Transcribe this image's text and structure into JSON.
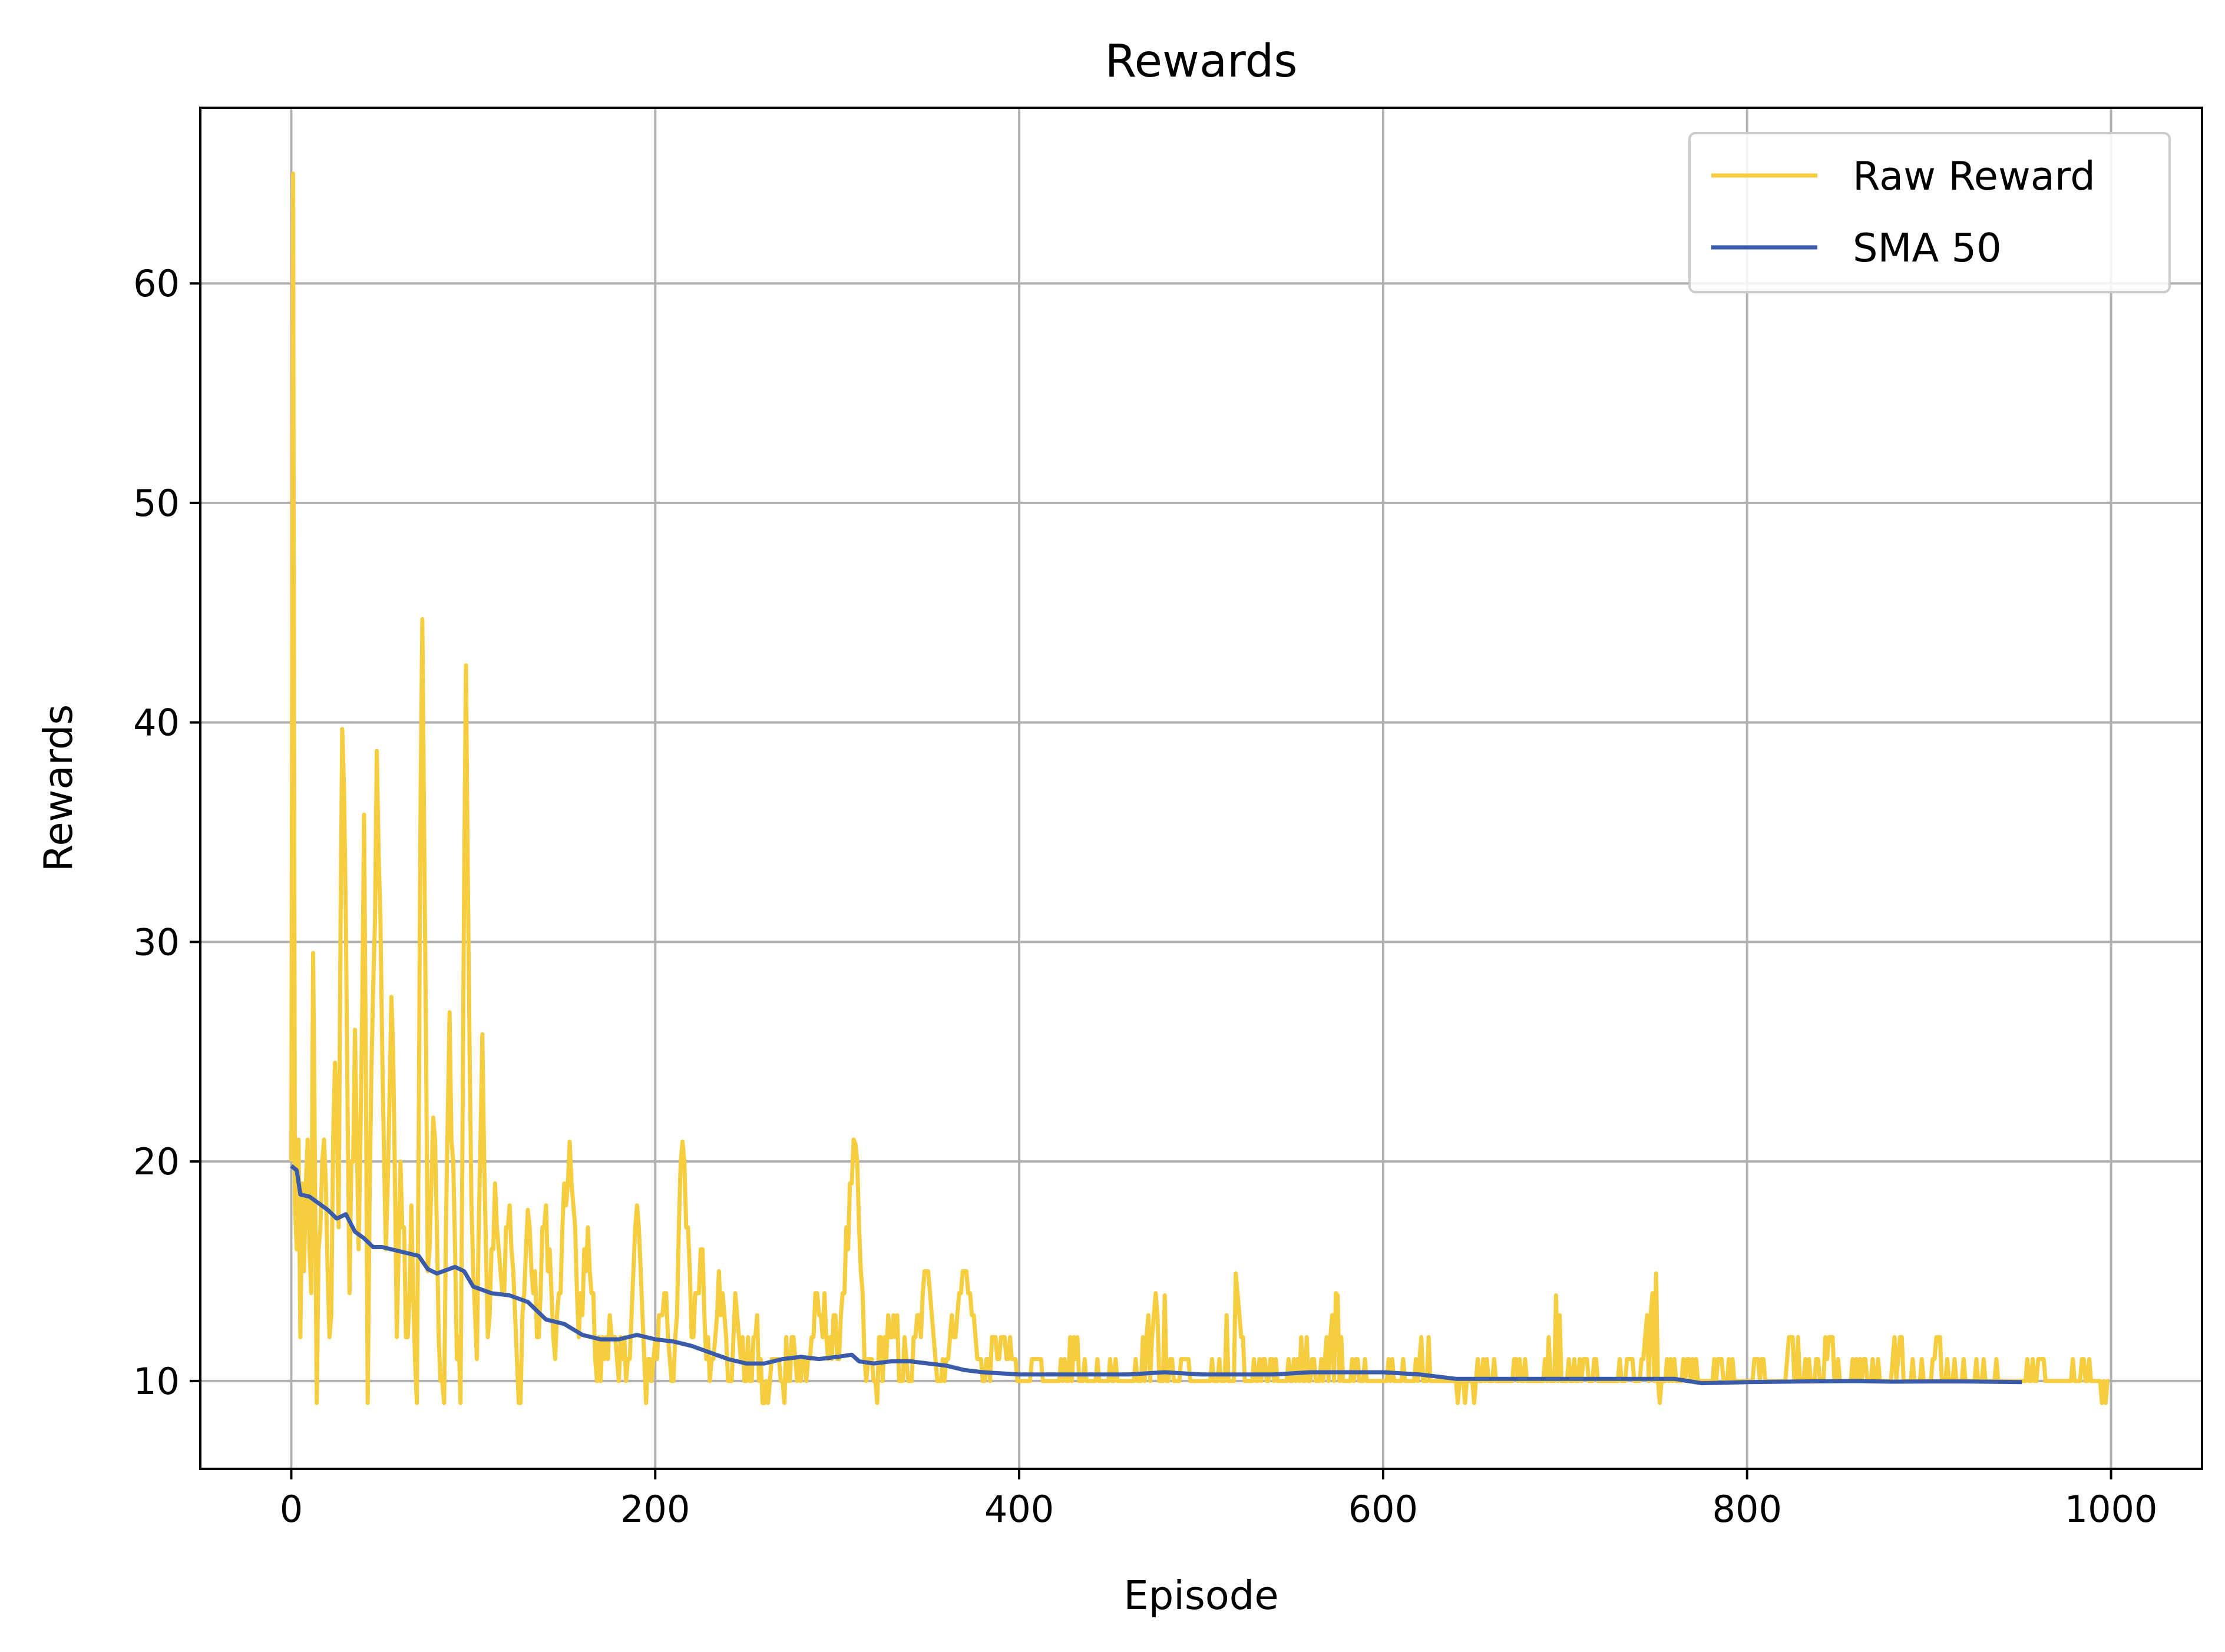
{
  "chart_data": {
    "type": "line",
    "title": "Rewards",
    "xlabel": "Episode",
    "ylabel": "Rewards",
    "xlim": [
      -50,
      1050
    ],
    "ylim": [
      6,
      68
    ],
    "xticks": [
      0,
      200,
      400,
      600,
      800,
      1000
    ],
    "yticks": [
      10,
      20,
      30,
      40,
      50,
      60
    ],
    "grid": true,
    "legend_position": "top-right",
    "series": [
      {
        "name": "Raw Reward",
        "color": "#f5cd3f",
        "episodes": [
          0,
          999
        ],
        "keypoints": [
          [
            0,
            20
          ],
          [
            1,
            65
          ],
          [
            2,
            18
          ],
          [
            3,
            16
          ],
          [
            4,
            21
          ],
          [
            5,
            12
          ],
          [
            6,
            19
          ],
          [
            7,
            15
          ],
          [
            9,
            21
          ],
          [
            11,
            14
          ],
          [
            12,
            29.5
          ],
          [
            14,
            9
          ],
          [
            16,
            17
          ],
          [
            18,
            21
          ],
          [
            20,
            15
          ],
          [
            22,
            13
          ],
          [
            24,
            24.5
          ],
          [
            26,
            17
          ],
          [
            28,
            39.7
          ],
          [
            30,
            31
          ],
          [
            32,
            14
          ],
          [
            35,
            26
          ],
          [
            37,
            16
          ],
          [
            40,
            35.8
          ],
          [
            42,
            9
          ],
          [
            45,
            28
          ],
          [
            47,
            38.7
          ],
          [
            50,
            25
          ],
          [
            52,
            16
          ],
          [
            55,
            27.5
          ],
          [
            58,
            12
          ],
          [
            60,
            20
          ],
          [
            63,
            12
          ],
          [
            66,
            18
          ],
          [
            69,
            9
          ],
          [
            72,
            44.7
          ],
          [
            75,
            15
          ],
          [
            78,
            22
          ],
          [
            81,
            12
          ],
          [
            84,
            9
          ],
          [
            87,
            26.8
          ],
          [
            90,
            16
          ],
          [
            93,
            9
          ],
          [
            96,
            42.6
          ],
          [
            99,
            18
          ],
          [
            102,
            11
          ],
          [
            105,
            25.8
          ],
          [
            108,
            12
          ],
          [
            112,
            19
          ],
          [
            116,
            14
          ],
          [
            120,
            18
          ],
          [
            125,
            9
          ],
          [
            130,
            17.8
          ],
          [
            135,
            12
          ],
          [
            140,
            18
          ],
          [
            145,
            11
          ],
          [
            153,
            20.9
          ],
          [
            158,
            12
          ],
          [
            163,
            17
          ],
          [
            168,
            10
          ],
          [
            175,
            13
          ],
          [
            180,
            10
          ],
          [
            185,
            11
          ],
          [
            190,
            18
          ],
          [
            195,
            9
          ],
          [
            200,
            11.8
          ],
          [
            205,
            14
          ],
          [
            210,
            10
          ],
          [
            215,
            20.9
          ],
          [
            220,
            12
          ],
          [
            225,
            16
          ],
          [
            230,
            10
          ],
          [
            235,
            15
          ],
          [
            240,
            10
          ],
          [
            245,
            13
          ],
          [
            250,
            10
          ],
          [
            255,
            12
          ],
          [
            260,
            9
          ],
          [
            265,
            11
          ],
          [
            270,
            10
          ],
          [
            275,
            12
          ],
          [
            280,
            10
          ],
          [
            290,
            13
          ],
          [
            300,
            11
          ],
          [
            310,
            20.8
          ],
          [
            315,
            11
          ],
          [
            320,
            10
          ],
          [
            330,
            12
          ],
          [
            340,
            10
          ],
          [
            350,
            15
          ],
          [
            355,
            10
          ],
          [
            360,
            11
          ],
          [
            370,
            15
          ],
          [
            380,
            10
          ],
          [
            390,
            12
          ],
          [
            400,
            10
          ],
          [
            410,
            11
          ],
          [
            420,
            10
          ],
          [
            430,
            12
          ],
          [
            440,
            10
          ],
          [
            450,
            11
          ],
          [
            460,
            10
          ],
          [
            470,
            12
          ],
          [
            480,
            13.9
          ],
          [
            485,
            10
          ],
          [
            490,
            11
          ],
          [
            500,
            10
          ],
          [
            510,
            11
          ],
          [
            519,
            14.9
          ],
          [
            525,
            10
          ],
          [
            535,
            11
          ],
          [
            545,
            10
          ],
          [
            555,
            12
          ],
          [
            565,
            10
          ],
          [
            575,
            13.9
          ],
          [
            580,
            10
          ],
          [
            585,
            11
          ],
          [
            595,
            10
          ],
          [
            605,
            11
          ],
          [
            615,
            10
          ],
          [
            625,
            12
          ],
          [
            635,
            10
          ],
          [
            645,
            9
          ],
          [
            655,
            11
          ],
          [
            665,
            10
          ],
          [
            675,
            11
          ],
          [
            685,
            10
          ],
          [
            695,
            13.9
          ],
          [
            700,
            10
          ],
          [
            710,
            11
          ],
          [
            720,
            10
          ],
          [
            730,
            11
          ],
          [
            740,
            10
          ],
          [
            750,
            14.9
          ],
          [
            752,
            9
          ],
          [
            755,
            10
          ],
          [
            765,
            11
          ],
          [
            775,
            10
          ],
          [
            785,
            11
          ],
          [
            795,
            10
          ],
          [
            805,
            11
          ],
          [
            815,
            10
          ],
          [
            825,
            12
          ],
          [
            835,
            10
          ],
          [
            845,
            12
          ],
          [
            855,
            10
          ],
          [
            865,
            11
          ],
          [
            875,
            10
          ],
          [
            885,
            12
          ],
          [
            895,
            10
          ],
          [
            905,
            12
          ],
          [
            915,
            10
          ],
          [
            930,
            11
          ],
          [
            940,
            10
          ],
          [
            960,
            11
          ],
          [
            970,
            10
          ],
          [
            985,
            11
          ],
          [
            990,
            10
          ],
          [
            999,
            10
          ]
        ]
      },
      {
        "name": "SMA 50",
        "color": "#3a5ba9",
        "keypoints": [
          [
            0,
            19.8
          ],
          [
            3,
            19.6
          ],
          [
            5,
            18.5
          ],
          [
            10,
            18.4
          ],
          [
            15,
            18.1
          ],
          [
            20,
            17.8
          ],
          [
            25,
            17.4
          ],
          [
            30,
            17.6
          ],
          [
            35,
            16.8
          ],
          [
            40,
            16.5
          ],
          [
            45,
            16.1
          ],
          [
            50,
            16.1
          ],
          [
            60,
            15.9
          ],
          [
            70,
            15.7
          ],
          [
            75,
            15.1
          ],
          [
            80,
            14.9
          ],
          [
            90,
            15.2
          ],
          [
            95,
            15.0
          ],
          [
            100,
            14.3
          ],
          [
            110,
            14.0
          ],
          [
            120,
            13.9
          ],
          [
            130,
            13.6
          ],
          [
            140,
            12.8
          ],
          [
            150,
            12.6
          ],
          [
            160,
            12.1
          ],
          [
            170,
            11.9
          ],
          [
            180,
            11.9
          ],
          [
            190,
            12.1
          ],
          [
            200,
            11.9
          ],
          [
            210,
            11.8
          ],
          [
            220,
            11.6
          ],
          [
            230,
            11.3
          ],
          [
            240,
            11.0
          ],
          [
            250,
            10.8
          ],
          [
            260,
            10.8
          ],
          [
            270,
            11.0
          ],
          [
            280,
            11.1
          ],
          [
            290,
            11.0
          ],
          [
            300,
            11.1
          ],
          [
            308,
            11.2
          ],
          [
            312,
            10.9
          ],
          [
            320,
            10.8
          ],
          [
            330,
            10.9
          ],
          [
            340,
            10.9
          ],
          [
            350,
            10.8
          ],
          [
            360,
            10.7
          ],
          [
            370,
            10.5
          ],
          [
            380,
            10.4
          ],
          [
            400,
            10.3
          ],
          [
            420,
            10.3
          ],
          [
            440,
            10.3
          ],
          [
            460,
            10.3
          ],
          [
            480,
            10.4
          ],
          [
            500,
            10.3
          ],
          [
            520,
            10.3
          ],
          [
            540,
            10.3
          ],
          [
            560,
            10.4
          ],
          [
            580,
            10.4
          ],
          [
            600,
            10.4
          ],
          [
            620,
            10.3
          ],
          [
            640,
            10.1
          ],
          [
            660,
            10.1
          ],
          [
            680,
            10.1
          ],
          [
            700,
            10.1
          ],
          [
            720,
            10.1
          ],
          [
            740,
            10.1
          ],
          [
            760,
            10.1
          ],
          [
            775,
            9.9
          ],
          [
            800,
            9.95
          ],
          [
            830,
            9.98
          ],
          [
            860,
            10.0
          ],
          [
            880,
            9.97
          ],
          [
            900,
            9.98
          ],
          [
            920,
            9.98
          ],
          [
            951,
            9.95
          ]
        ]
      }
    ]
  }
}
